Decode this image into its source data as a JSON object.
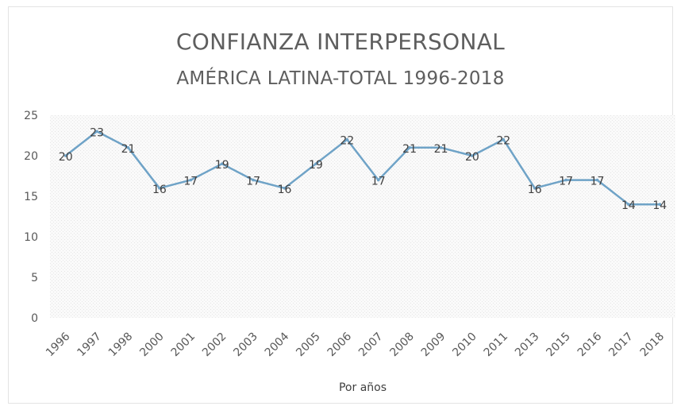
{
  "chart_data": {
    "type": "line",
    "title": "CONFIANZA INTERPERSONAL",
    "subtitle": "AMÉRICA LATINA-TOTAL 1996-2018",
    "xlabel": "Por años",
    "ylabel": "",
    "categories": [
      "1996",
      "1997",
      "1998",
      "2000",
      "2001",
      "2002",
      "2003",
      "2004",
      "2005",
      "2006",
      "2007",
      "2008",
      "2009",
      "2010",
      "2011",
      "2013",
      "2015",
      "2016",
      "2017",
      "2018"
    ],
    "series": [
      {
        "values": [
          20,
          23,
          21,
          16,
          17,
          19,
          17,
          16,
          19,
          22,
          17,
          21,
          21,
          20,
          22,
          16,
          17,
          17,
          14,
          14
        ]
      }
    ],
    "ylim": [
      0,
      25
    ],
    "yticks": [
      0,
      5,
      10,
      15,
      20,
      25
    ],
    "data_labels": true,
    "grid": false,
    "line_color": "#6fa3c7"
  }
}
